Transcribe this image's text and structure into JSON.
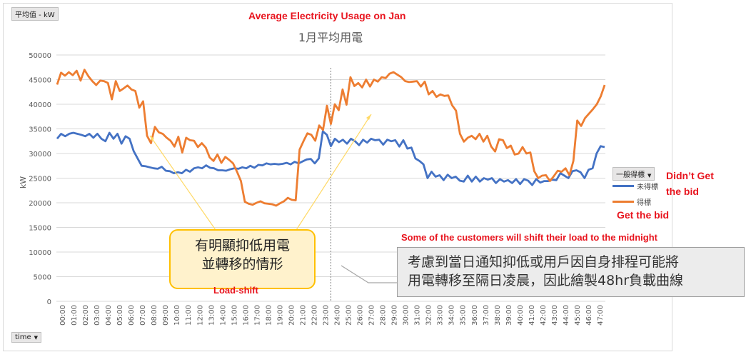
{
  "field_buttons": {
    "value_field": "平均值 - kW",
    "axis_field": "time",
    "legend_field": "一般得標"
  },
  "annotations": {
    "top_title": "Average Electricity Usage on Jan",
    "didnt_get": [
      "Didn’t Get",
      "the bid"
    ],
    "get_bid": "Get the bid",
    "customers_note": "Some of the customers will shift their load to the midnight",
    "callout_left": [
      "有明顯抑低用電",
      "並轉移的情形"
    ],
    "load_shift": "Load-shift",
    "callout_right": [
      "考慮到當日通知抑低或用戶因自身排程可能將",
      "用電轉移至隔日凌晨，因此繪製48hr負載曲線"
    ]
  },
  "colors": {
    "blue": "#4472c4",
    "orange": "#ed7d31",
    "red": "#e8141e",
    "grid": "#d9d9d9",
    "callout_border": "#ffc000"
  },
  "chart_data": {
    "type": "line",
    "title": "1月平均用電",
    "ylabel": "kW",
    "xlabel": "",
    "ylim": [
      0,
      50000
    ],
    "yticks": [
      "0",
      "5000",
      "10000",
      "15000",
      "20000",
      "25000",
      "30000",
      "35000",
      "40000",
      "45000",
      "50000"
    ],
    "xticks": [
      "00:00",
      "01:00",
      "02:00",
      "03:00",
      "04:00",
      "05:00",
      "06:00",
      "07:00",
      "08:00",
      "09:00",
      "10:00",
      "11:00",
      "12:00",
      "13:00",
      "14:00",
      "15:00",
      "16:00",
      "17:00",
      "18:00",
      "19:00",
      "20:00",
      "21:00",
      "22:00",
      "23:00",
      "24:00",
      "25:00",
      "26:00",
      "27:00",
      "28:00",
      "29:00",
      "30:00",
      "31:00",
      "32:00",
      "33:00",
      "34:00",
      "35:00",
      "36:00",
      "37:00",
      "38:00",
      "39:00",
      "40:00",
      "41:00",
      "42:00",
      "43:00",
      "44:00",
      "45:00",
      "46:00",
      "47:00"
    ],
    "divider_at_hour": 24,
    "legend_position": "right",
    "series": [
      {
        "name": "未得標",
        "color": "#4472c4",
        "values": [
          33000,
          34000,
          33500,
          34000,
          34200,
          34000,
          33800,
          33500,
          34000,
          33200,
          34000,
          33000,
          32500,
          34200,
          33000,
          34000,
          32000,
          33500,
          33000,
          30500,
          29000,
          27500,
          27400,
          27200,
          27000,
          26900,
          27300,
          26500,
          26400,
          26000,
          26200,
          26000,
          26700,
          26300,
          27000,
          27200,
          27000,
          27600,
          27100,
          27000,
          26600,
          26600,
          26500,
          26800,
          27000,
          26900,
          27200,
          27000,
          27500,
          27100,
          27700,
          27600,
          28000,
          27800,
          27900,
          27800,
          27900,
          28100,
          27800,
          28300,
          28000,
          28400,
          28800,
          28900,
          28000,
          29000,
          34500,
          33800,
          31500,
          33000,
          32300,
          32800,
          32000,
          33000,
          32500,
          31700,
          32800,
          32200,
          33000,
          32700,
          32800,
          31800,
          32800,
          32500,
          32700,
          31400,
          32700,
          31000,
          31200,
          29000,
          28500,
          27800,
          25000,
          26300,
          25300,
          25600,
          24600,
          25700,
          25000,
          25300,
          24500,
          24300,
          25500,
          24300,
          25300,
          24300,
          25000,
          24700,
          25000,
          24000,
          24800,
          24300,
          24600,
          24000,
          24800,
          23800,
          24800,
          24500,
          23600,
          24800,
          24100,
          24400,
          24400,
          24700,
          24600,
          26000,
          25500,
          25000,
          26400,
          26600,
          26200,
          25000,
          26700,
          27000,
          30000,
          31500,
          31300
        ]
      },
      {
        "name": "得標",
        "color": "#ed7d31",
        "values": [
          44000,
          46400,
          45800,
          46500,
          45900,
          46800,
          44800,
          47000,
          45700,
          44700,
          43900,
          44800,
          44700,
          44300,
          41000,
          44700,
          42700,
          43200,
          43800,
          43000,
          42700,
          39300,
          40600,
          33600,
          32100,
          35400,
          34300,
          34000,
          33200,
          32600,
          31400,
          33400,
          30200,
          33200,
          32700,
          32600,
          31300,
          32100,
          31200,
          29200,
          28500,
          29800,
          28100,
          29300,
          28700,
          28000,
          26300,
          24400,
          20200,
          19800,
          19600,
          20000,
          20300,
          19900,
          19800,
          19700,
          19400,
          19900,
          20300,
          21000,
          20600,
          20500,
          30800,
          32500,
          34100,
          33800,
          32600,
          35700,
          34800,
          39700,
          36000,
          40000,
          38800,
          43000,
          39900,
          45500,
          43700,
          44300,
          43400,
          45000,
          43600,
          45000,
          44600,
          45500,
          45300,
          46200,
          46500,
          46000,
          45500,
          44700,
          44500,
          44600,
          44700,
          43600,
          44600,
          42000,
          42700,
          41500,
          42000,
          41700,
          41800,
          39800,
          38700,
          34000,
          32400,
          33200,
          33600,
          32900,
          34000,
          32400,
          33600,
          31400,
          30400,
          32900,
          32700,
          31100,
          31600,
          29800,
          30000,
          31300,
          30000,
          30200,
          26400,
          25000,
          25500,
          25600,
          24400,
          25400,
          26500,
          26300,
          27000,
          25600,
          28500,
          36700,
          35600,
          37200,
          38100,
          39000,
          40000,
          41600,
          43900
        ]
      }
    ]
  }
}
